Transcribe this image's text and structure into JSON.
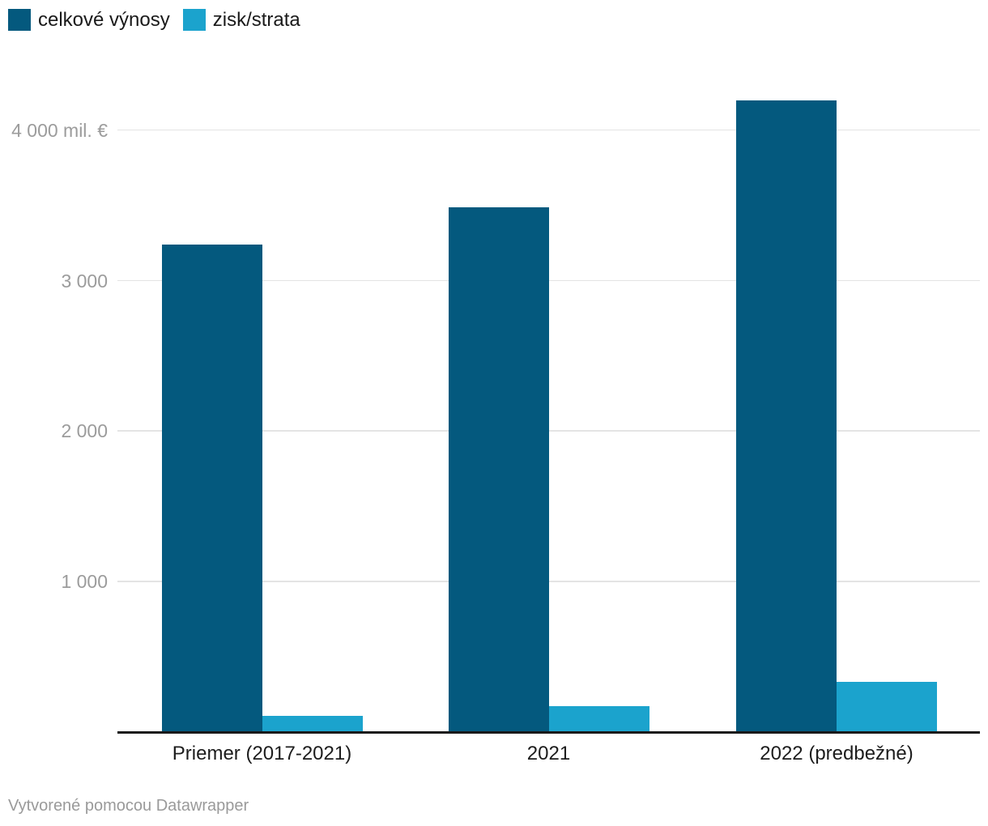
{
  "legend": {
    "items": [
      {
        "label": "celkové výnosy",
        "color": "#04597e"
      },
      {
        "label": "zisk/strata",
        "color": "#1ba3cd"
      }
    ]
  },
  "footer": {
    "text": "Vytvorené pomocou Datawrapper"
  },
  "chart_data": {
    "type": "bar",
    "subtype": "grouped-column",
    "categories": [
      "Priemer (2017-2021)",
      "2021",
      "2022 (predbežné)"
    ],
    "series": [
      {
        "name": "celkové výnosy",
        "color": "#04597e",
        "values": [
          3240,
          3490,
          4200
        ]
      },
      {
        "name": "zisk/strata",
        "color": "#1ba3cd",
        "values": [
          110,
          170,
          335
        ]
      }
    ],
    "unit": "mil. €",
    "yticks": [
      {
        "value": 4000,
        "label": "4 000 mil. €"
      },
      {
        "value": 3000,
        "label": "3 000"
      },
      {
        "value": 2000,
        "label": "2 000"
      },
      {
        "value": 1000,
        "label": "1 000"
      }
    ],
    "ylim": [
      0,
      4550
    ],
    "grid": true,
    "legend_position": "top-left",
    "attribution": "Vytvorené pomocou Datawrapper"
  }
}
